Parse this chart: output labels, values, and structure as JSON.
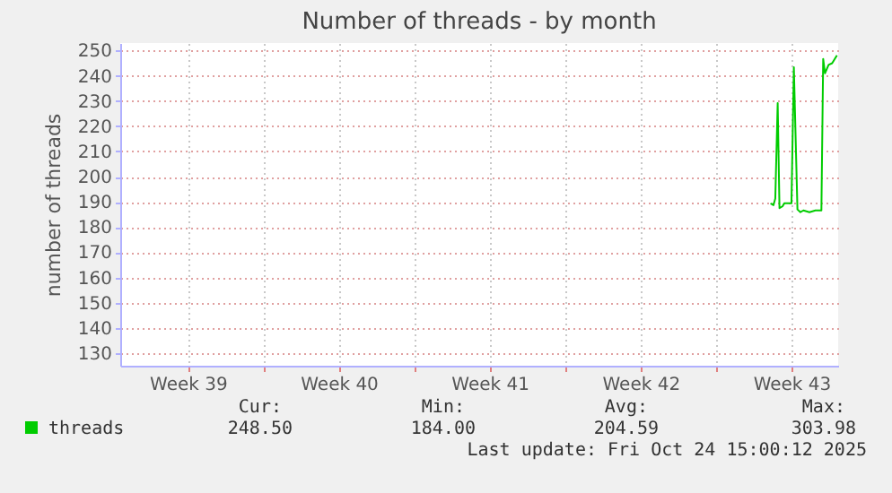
{
  "chart_data": {
    "type": "line",
    "title": "Number of threads - by month",
    "ylabel": "number of threads",
    "x": [
      "2025-10-22T12:40",
      "2025-10-22T16:00",
      "2025-10-22T18:00",
      "2025-10-22T20:40",
      "2025-10-22T22:40",
      "2025-10-23T02:00",
      "2025-10-23T04:00",
      "2025-10-23T12:00",
      "2025-10-23T14:40",
      "2025-10-23T18:40",
      "2025-10-23T22:00",
      "2025-10-24T01:20",
      "2025-10-24T08:00",
      "2025-10-24T14:40",
      "2025-10-24T21:20",
      "2025-10-24T23:20",
      "2025-10-25T01:20",
      "2025-10-25T05:20",
      "2025-10-25T09:20",
      "2025-10-25T14:40"
    ],
    "series": [
      {
        "name": "threads",
        "color": "#00cc00",
        "values": [
          189.4,
          188.7,
          191.3,
          229.2,
          187.5,
          188.2,
          189.4,
          189.4,
          243.4,
          187,
          185.9,
          186.6,
          185.9,
          186.6,
          186.6,
          246.7,
          241,
          244.3,
          245,
          248.1
        ]
      }
    ],
    "xlim": [
      "2025-09-22T08:40",
      "2025-10-25T16:00"
    ],
    "xticks": [
      {
        "value": "2025-09-25T12:00",
        "label": "Week 39"
      },
      {
        "value": "2025-09-29T00:00",
        "label": null
      },
      {
        "value": "2025-10-02T12:00",
        "label": "Week 40"
      },
      {
        "value": "2025-10-06T00:00",
        "label": null
      },
      {
        "value": "2025-10-09T12:00",
        "label": "Week 41"
      },
      {
        "value": "2025-10-13T00:00",
        "label": null
      },
      {
        "value": "2025-10-16T12:00",
        "label": "Week 42"
      },
      {
        "value": "2025-10-20T00:00",
        "label": null
      },
      {
        "value": "2025-10-23T12:00",
        "label": "Week 43"
      }
    ],
    "ylim": [
      125,
      253
    ],
    "yticks": [
      130,
      140,
      150,
      160,
      170,
      180,
      190,
      200,
      210,
      220,
      230,
      240,
      250
    ],
    "grid": true,
    "legend": "bottom",
    "marker": "none",
    "line_style": "solid",
    "annotations": [
      "Cur:",
      "248.50",
      "Min:",
      "184.00",
      "Avg:",
      "204.59",
      "Max:",
      "303.98",
      "Last update: Fri Oct 24 15:00:12 2025"
    ]
  }
}
